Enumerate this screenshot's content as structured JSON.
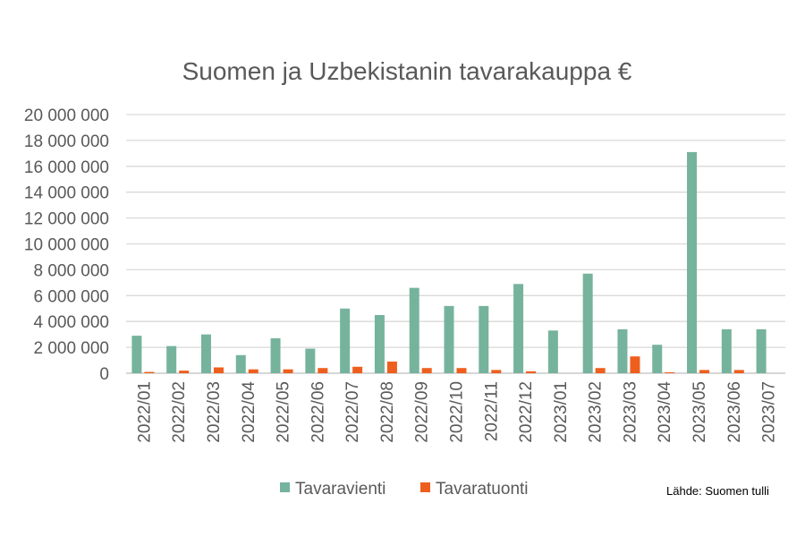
{
  "chart_data": {
    "type": "bar",
    "title": "Suomen ja Uzbekistanin tavarakauppa €",
    "categories": [
      "2022/01",
      "2022/02",
      "2022/03",
      "2022/04",
      "2022/05",
      "2022/06",
      "2022/07",
      "2022/08",
      "2022/09",
      "2022/10",
      "2022/11",
      "2022/12",
      "2023/01",
      "2023/02",
      "2023/03",
      "2023/04",
      "2023/05",
      "2023/06",
      "2023/07"
    ],
    "series": [
      {
        "name": "Tavaravienti",
        "color": "#76b39d",
        "values": [
          2900000,
          2100000,
          3000000,
          1400000,
          2700000,
          1900000,
          5000000,
          4500000,
          6600000,
          5200000,
          5200000,
          6900000,
          3300000,
          7700000,
          3400000,
          2200000,
          17100000,
          3400000,
          3400000
        ]
      },
      {
        "name": "Tavaratuonti",
        "color": "#ee5f1e",
        "values": [
          100000,
          200000,
          450000,
          300000,
          300000,
          400000,
          500000,
          900000,
          400000,
          400000,
          250000,
          150000,
          0,
          400000,
          1300000,
          70000,
          250000,
          250000,
          0
        ]
      }
    ],
    "ylim": [
      0,
      20000000
    ],
    "yticks": [
      "0",
      "2 000 000",
      "4 000 000",
      "6 000 000",
      "8 000 000",
      "10 000 000",
      "12 000 000",
      "14 000 000",
      "16 000 000",
      "18 000 000",
      "20 000 000"
    ],
    "grid": true,
    "legend": "bottom",
    "source": "Lähde: Suomen tulli"
  }
}
